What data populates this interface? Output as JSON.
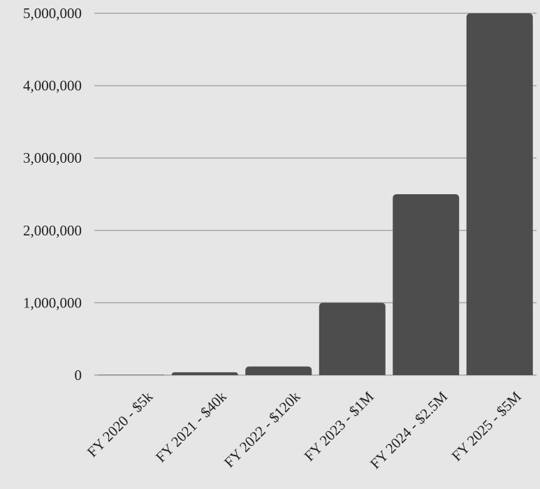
{
  "chart_data": {
    "type": "bar",
    "title": "",
    "xlabel": "",
    "ylabel": "",
    "categories": [
      "FY 2020 - $5k",
      "FY 2021 - $40k",
      "FY 2022 - $120k",
      "FY 2023 - $1M",
      "FY 2024 - $2.5M",
      "FY 2025 - $5M"
    ],
    "values": [
      5000,
      40000,
      120000,
      1000000,
      2500000,
      5000000
    ],
    "ylim": [
      0,
      5000000
    ],
    "yticks": [
      0,
      1000000,
      2000000,
      3000000,
      4000000,
      5000000
    ],
    "ytick_labels": [
      "0",
      "1,000,000",
      "2,000,000",
      "3,000,000",
      "4,000,000",
      "5,000,000"
    ],
    "grid": true,
    "legend": "none",
    "colors": {
      "bar": "#4d4d4d",
      "background": "#e6e6e6",
      "grid": "#a6a6a6",
      "text": "#1e1e1e"
    }
  }
}
